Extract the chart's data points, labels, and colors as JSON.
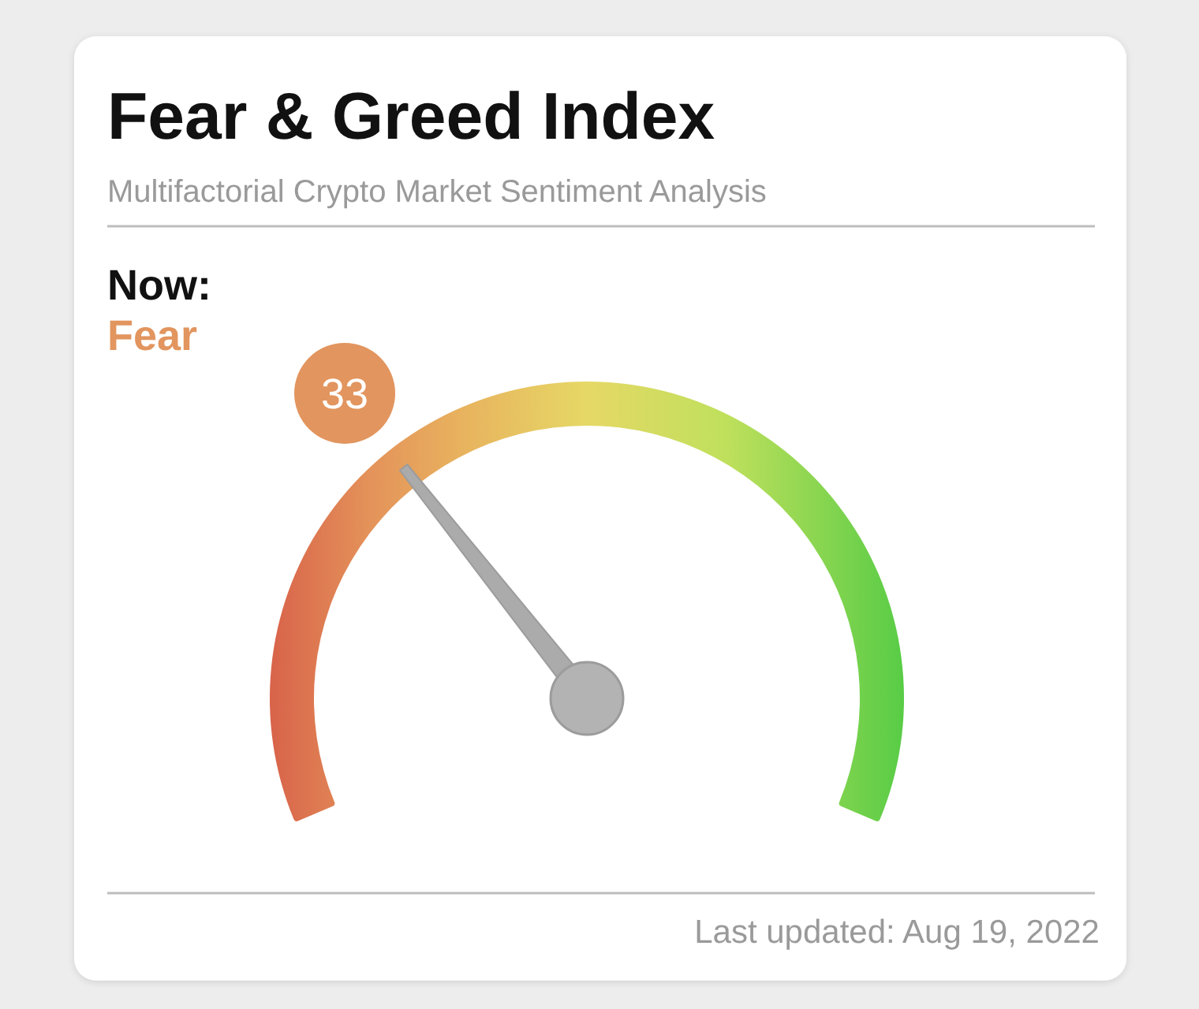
{
  "chart_data": {
    "type": "other",
    "title": "Fear & Greed Index",
    "subtitle": "Multifactorial Crypto Market Sentiment Analysis",
    "categories": [
      "Fear"
    ],
    "values": [
      33
    ],
    "color": "#e2955e",
    "data_labels": true,
    "annotations": [
      "Now:",
      "Last updated: Aug 19, 2022"
    ]
  }
}
